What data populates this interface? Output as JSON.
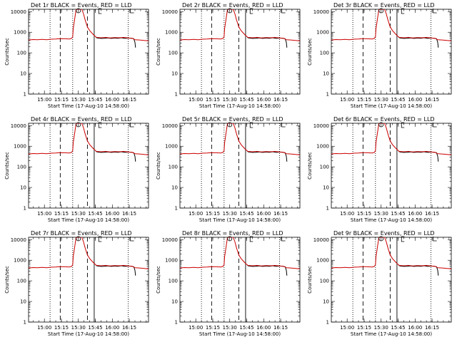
{
  "figure": {
    "background": "#ffffff"
  },
  "chart_data": [
    {
      "type": "line",
      "title": "Det 1r BLACK = Events, RED = LLD"
    },
    {
      "type": "line",
      "title": "Det 2r BLACK = Events, RED = LLD"
    },
    {
      "type": "line",
      "title": "Det 3r BLACK = Events, RED = LLD"
    },
    {
      "type": "line",
      "title": "Det 4r BLACK = Events, RED = LLD"
    },
    {
      "type": "line",
      "title": "Det 5r BLACK = Events, RED = LLD"
    },
    {
      "type": "line",
      "title": "Det 6r BLACK = Events, RED = LLD"
    },
    {
      "type": "line",
      "title": "Det 7r BLACK = Events, RED = LLD"
    },
    {
      "type": "line",
      "title": "Det 8r BLACK = Events, RED = LLD"
    },
    {
      "type": "line",
      "title": "Det 9r BLACK = Events, RED = LLD"
    }
  ],
  "shared": {
    "ylabel": "Counts/sec",
    "xlabel": "Start Time (17-Aug-10 14:58:00)",
    "x_tick_labels": [
      "15:00",
      "15:15",
      "15:30",
      "15:45",
      "16:00",
      "16:15"
    ],
    "x_ticks_minutes": [
      2,
      17,
      32,
      47,
      62,
      77
    ],
    "xlim_minutes": [
      -12,
      94
    ],
    "y_tick_labels": [
      "1",
      "10",
      "100",
      "1000",
      "10000"
    ],
    "y_ticks": [
      1,
      10,
      100,
      1000,
      10000
    ],
    "ylim": [
      1,
      13000
    ],
    "y_scale": "log",
    "series": [
      {
        "name": "Events",
        "color": "#000000",
        "x": [
          47.5,
          49,
          52,
          55,
          58,
          61,
          64,
          67,
          70,
          73,
          76,
          79,
          81,
          82,
          82.5
        ],
        "y": [
          560,
          520,
          500,
          510,
          530,
          500,
          520,
          510,
          540,
          500,
          520,
          510,
          480,
          320,
          180
        ]
      },
      {
        "name": "LLD",
        "color": "#cc0000",
        "x": [
          -12,
          -8,
          -4,
          0,
          4,
          8,
          12,
          16,
          20,
          24,
          26,
          27,
          27.5,
          30,
          33,
          35,
          36.5,
          38,
          40,
          42,
          44,
          46,
          48,
          52,
          56,
          60,
          64,
          68,
          72,
          76,
          80,
          82,
          86,
          90,
          94
        ],
        "y": [
          420,
          440,
          430,
          450,
          430,
          460,
          470,
          490,
          480,
          470,
          500,
          600,
          1500,
          15000,
          15000,
          13000,
          8000,
          4000,
          1800,
          1200,
          900,
          700,
          560,
          540,
          560,
          530,
          550,
          540,
          560,
          530,
          500,
          430,
          420,
          400,
          380
        ]
      }
    ],
    "markers": {
      "dotted_minutes": [
        7,
        27,
        76
      ],
      "dashed_minutes": [
        16,
        40
      ],
      "solid_minutes": [
        46
      ]
    },
    "symbols": [
      {
        "shape": "circle",
        "x_minutes": 32,
        "y_value": 13000
      },
      {
        "shape": "bracket-open",
        "x_minutes": 50,
        "y_value": 13000
      },
      {
        "shape": "bracket-close",
        "x_minutes": 78,
        "y_value": 13000
      }
    ]
  }
}
